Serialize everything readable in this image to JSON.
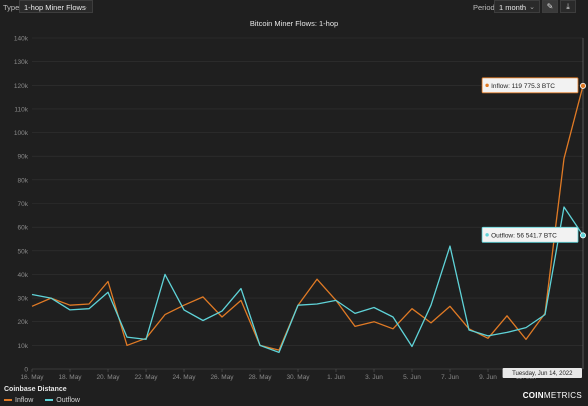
{
  "toolbar": {
    "type_label": "Type:",
    "type_value": "1-hop Miner Flows",
    "period_label": "Period",
    "period_value": "1 month",
    "pick_icon": "eyedropper-icon",
    "download_icon": "download-icon"
  },
  "footer": {
    "title": "Coinbase Distance",
    "legend": [
      {
        "name": "Inflow",
        "color": "#e07a25"
      },
      {
        "name": "Outflow",
        "color": "#5fd3d8"
      }
    ],
    "brand_bold": "COIN",
    "brand_rest": "METRICS"
  },
  "chart_data": {
    "type": "line",
    "title": "Bitcoin Miner Flows: 1-hop",
    "x": [
      "2022-05-16",
      "2022-05-17",
      "2022-05-18",
      "2022-05-19",
      "2022-05-20",
      "2022-05-21",
      "2022-05-22",
      "2022-05-23",
      "2022-05-24",
      "2022-05-25",
      "2022-05-26",
      "2022-05-27",
      "2022-05-28",
      "2022-05-29",
      "2022-05-30",
      "2022-05-31",
      "2022-06-01",
      "2022-06-02",
      "2022-06-03",
      "2022-06-04",
      "2022-06-05",
      "2022-06-06",
      "2022-06-07",
      "2022-06-08",
      "2022-06-09",
      "2022-06-10",
      "2022-06-11",
      "2022-06-12",
      "2022-06-13",
      "2022-06-14"
    ],
    "x_ticks": [
      "16. May",
      "18. May",
      "20. May",
      "22. May",
      "24. May",
      "26. May",
      "28. May",
      "30. May",
      "1. Jun",
      "3. Jun",
      "5. Jun",
      "7. Jun",
      "9. Jun",
      "11. Jun"
    ],
    "y_ticks": [
      "0",
      "10k",
      "20k",
      "30k",
      "40k",
      "50k",
      "60k",
      "70k",
      "80k",
      "90k",
      "100k",
      "110k",
      "120k",
      "130k",
      "140k"
    ],
    "ylim": [
      0,
      140000
    ],
    "grid": true,
    "series": [
      {
        "name": "Inflow",
        "color": "#e07a25",
        "values": [
          26500,
          30000,
          27000,
          27500,
          37000,
          10000,
          13000,
          23000,
          27000,
          30500,
          22000,
          29000,
          10000,
          8000,
          27000,
          38000,
          29000,
          18000,
          20000,
          17000,
          25500,
          19500,
          26500,
          17000,
          13000,
          22500,
          12500,
          23500,
          89000,
          119775.3
        ]
      },
      {
        "name": "Outflow",
        "color": "#5fd3d8",
        "values": [
          31500,
          30000,
          25000,
          25500,
          32500,
          13500,
          12500,
          40000,
          25000,
          20500,
          24500,
          34000,
          10000,
          7000,
          27000,
          27500,
          29000,
          23500,
          26000,
          22000,
          9500,
          27000,
          52000,
          16500,
          14000,
          15500,
          17500,
          23000,
          68500,
          56541.7
        ]
      }
    ],
    "annotations": [
      {
        "series": "Inflow",
        "text": "Inflow: 119 775.3 BTC"
      },
      {
        "series": "Outflow",
        "text": "Outflow: 56 541.7 BTC"
      }
    ],
    "crosshair_label": "Tuesday, Jun 14, 2022"
  }
}
